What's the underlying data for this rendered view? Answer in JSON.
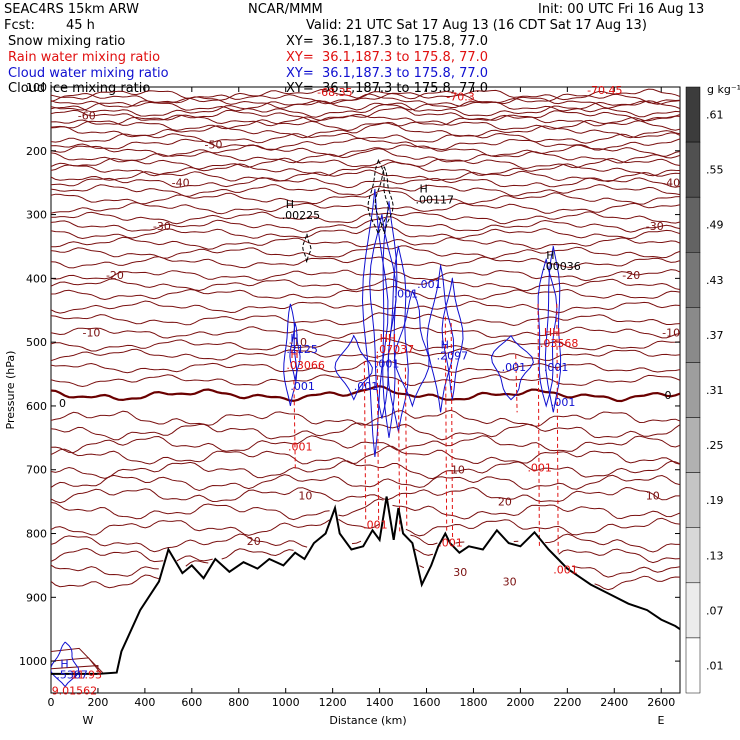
{
  "header": {
    "model": "SEAC4RS 15km ARW",
    "org": "NCAR/MMM",
    "init": "Init: 00 UTC Fri 16 Aug 13",
    "fcst_label": "Fcst:",
    "fcst_value": "45 h",
    "valid": "Valid: 21 UTC Sat 17 Aug 13 (16 CDT Sat 17 Aug 13)",
    "fields": [
      {
        "name": "Snow mixing ratio",
        "xy": "XY=  36.1,187.3 to 175.8, 77.0",
        "color": "#000000"
      },
      {
        "name": "Rain water mixing ratio",
        "xy": "XY=  36.1,187.3 to 175.8, 77.0",
        "color": "#e01010"
      },
      {
        "name": "Cloud water mixing ratio",
        "xy": "XY=  36.1,187.3 to 175.8, 77.0",
        "color": "#1010d0"
      },
      {
        "name": "Cloud ice mixing ratio",
        "xy": "XY=  36.1,187.3 to 175.8, 77.0",
        "color": "#000000"
      }
    ]
  },
  "colorbar": {
    "unit": "g kg⁻¹",
    "ticks": [
      ".61",
      ".55",
      ".49",
      ".43",
      ".37",
      ".31",
      ".25",
      ".19",
      ".13",
      ".07",
      ".01"
    ]
  },
  "colors": {
    "isotherm": "#7a1010",
    "freezing": "#6a0000",
    "terrain": "#000000",
    "rain": "#e01010",
    "cloud": "#1010d0"
  },
  "chart_data": {
    "type": "cross-section",
    "xlabel": "Distance (km)",
    "ylabel": "Pressure (hPa)",
    "xlim": [
      0,
      2680
    ],
    "ylim": [
      1050,
      100
    ],
    "x_ticks": [
      0,
      200,
      400,
      600,
      800,
      1000,
      1200,
      1400,
      1600,
      1800,
      2000,
      2200,
      2400,
      2600
    ],
    "y_ticks": [
      200,
      300,
      400,
      500,
      600,
      700,
      800,
      900,
      1000
    ],
    "y_tick_labels": [
      "200",
      "300",
      "400",
      "500",
      "600",
      "700",
      "800",
      "900",
      "1000"
    ],
    "y_top_label": "100",
    "end_labels": {
      "left": "W",
      "right": "E"
    },
    "terrain_pressure": [
      [
        0,
        1020
      ],
      [
        100,
        1020
      ],
      [
        200,
        1020
      ],
      [
        280,
        1018
      ],
      [
        300,
        985
      ],
      [
        380,
        920
      ],
      [
        460,
        875
      ],
      [
        500,
        825
      ],
      [
        560,
        862
      ],
      [
        600,
        850
      ],
      [
        650,
        870
      ],
      [
        700,
        840
      ],
      [
        760,
        860
      ],
      [
        820,
        845
      ],
      [
        880,
        855
      ],
      [
        930,
        840
      ],
      [
        990,
        850
      ],
      [
        1040,
        830
      ],
      [
        1080,
        840
      ],
      [
        1120,
        815
      ],
      [
        1170,
        800
      ],
      [
        1210,
        760
      ],
      [
        1230,
        800
      ],
      [
        1280,
        825
      ],
      [
        1330,
        820
      ],
      [
        1370,
        795
      ],
      [
        1400,
        810
      ],
      [
        1430,
        742
      ],
      [
        1460,
        810
      ],
      [
        1480,
        760
      ],
      [
        1500,
        800
      ],
      [
        1540,
        815
      ],
      [
        1580,
        880
      ],
      [
        1620,
        850
      ],
      [
        1650,
        820
      ],
      [
        1680,
        800
      ],
      [
        1700,
        815
      ],
      [
        1740,
        830
      ],
      [
        1780,
        820
      ],
      [
        1840,
        825
      ],
      [
        1900,
        795
      ],
      [
        1950,
        815
      ],
      [
        2000,
        820
      ],
      [
        2060,
        798
      ],
      [
        2120,
        825
      ],
      [
        2160,
        840
      ],
      [
        2200,
        855
      ],
      [
        2260,
        870
      ],
      [
        2300,
        880
      ],
      [
        2380,
        895
      ],
      [
        2460,
        910
      ],
      [
        2540,
        920
      ],
      [
        2600,
        935
      ],
      [
        2660,
        945
      ],
      [
        2680,
        950
      ]
    ],
    "isotherms": [
      {
        "temp": 30,
        "p": 875
      },
      {
        "temp": 20,
        "p": 815
      },
      {
        "temp": 10,
        "p": 720
      },
      {
        "temp": 0,
        "p": 583
      },
      {
        "temp": -10,
        "p": 485
      },
      {
        "temp": -20,
        "p": 395
      },
      {
        "temp": -30,
        "p": 318
      },
      {
        "temp": -40,
        "p": 250
      },
      {
        "temp": -50,
        "p": 190
      },
      {
        "temp": -60,
        "p": 145
      },
      {
        "temp": -70,
        "p": 112
      }
    ],
    "extra_isotherm_p": [
      855,
      835,
      790,
      765,
      740,
      700,
      680,
      660,
      640,
      620,
      560,
      540,
      520,
      505,
      465,
      445,
      425,
      410,
      375,
      360,
      345,
      330,
      305,
      290,
      275,
      262,
      240,
      230,
      220,
      210,
      200,
      180,
      170,
      160,
      152,
      138,
      130,
      124,
      118
    ],
    "isotherm_labels": [
      "-60",
      "-50",
      "-40",
      "-30",
      "-20",
      "-10",
      "0",
      "10",
      "20",
      "30",
      "-70.3",
      "-70.45",
      "-68.35",
      "-40",
      "-30",
      "-20",
      "-10",
      "0",
      "10",
      "20",
      "10",
      "-10",
      "30"
    ],
    "cloud_water_labels": [
      ".001",
      ".001",
      ".001",
      ".001",
      ".001",
      ".001",
      ".001",
      ".001"
    ],
    "rain_labels": [
      ".001",
      ".001",
      ".001",
      ".001",
      ".001"
    ],
    "max_labels": [
      {
        "text": "H",
        "sub": ".00225",
        "x": 1000,
        "p": 290
      },
      {
        "text": "H",
        "sub": ".00117",
        "x": 1570,
        "p": 265
      },
      {
        "text": "H",
        "sub": ".00036",
        "x": 2110,
        "p": 370
      },
      {
        "text": "H",
        "sub": ".2125",
        "x": 1020,
        "p": 500
      },
      {
        "text": "H",
        "sub": ".03066",
        "x": 1020,
        "p": 525
      },
      {
        "text": "HH",
        "sub": ".07037",
        "x": 1400,
        "p": 500
      },
      {
        "text": "H",
        "sub": ".2097",
        "x": 1660,
        "p": 510
      },
      {
        "text": "HH",
        "sub": ".03568",
        "x": 2100,
        "p": 490
      },
      {
        "text": "H",
        "sub": ".5387",
        "x": 40,
        "p": 1010
      },
      {
        "text": "",
        "sub": "11.93",
        "x": 100,
        "p": 1010
      },
      {
        "text": "",
        "sub": "9.01562",
        "x": 20,
        "p": 1035
      }
    ]
  }
}
